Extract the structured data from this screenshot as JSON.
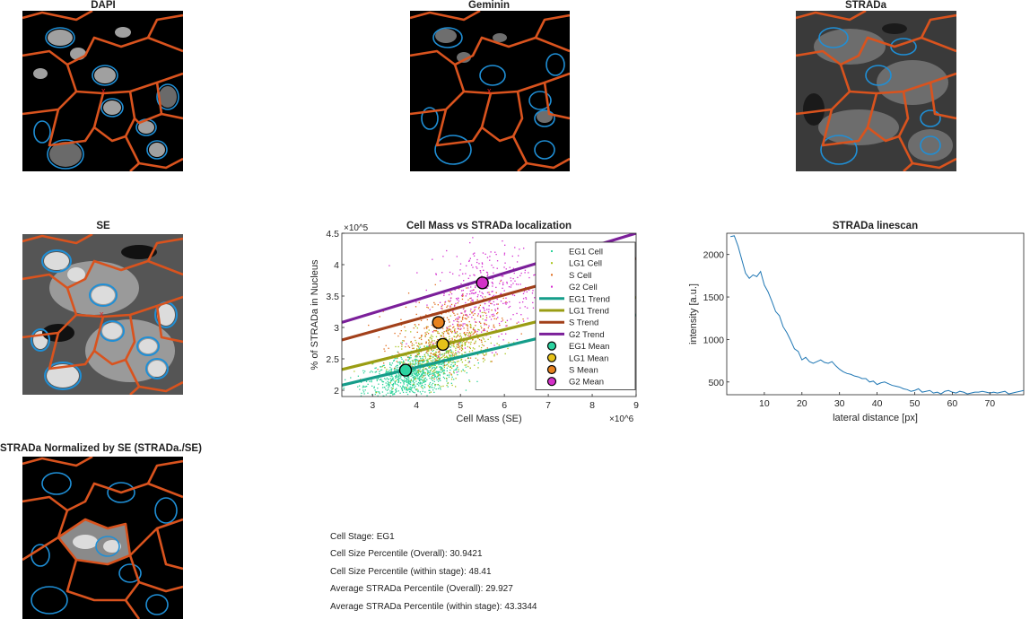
{
  "panels": {
    "dapi_title": "DAPI",
    "geminin_title": "Geminin",
    "strada_title": "STRADa",
    "se_title": "SE",
    "normalized_title": "STRADa Normalized by SE (STRADa./SE)"
  },
  "colors": {
    "segmentation_outline": "#d9531e",
    "nucleus_outline": "#1f8fd6",
    "marker": "#e02020"
  },
  "info": {
    "lines": [
      "Cell Stage: EG1",
      "Cell Size Percentile (Overall): 30.9421",
      "Cell Size Percentile (within stage): 48.41",
      "Average STRADa Percentile (Overall): 29.927",
      "Average STRADa Percentile (within stage): 43.3344"
    ]
  },
  "chart_data": [
    {
      "type": "scatter",
      "title": "Cell Mass vs STRADa localization",
      "xlabel": "Cell Mass (SE)",
      "ylabel": "% of STRADa in Nucleus",
      "x_exponent": "×10^6",
      "y_exponent": "×10^5",
      "xlim": [
        2.3,
        9.0
      ],
      "ylim": [
        1.9,
        4.5
      ],
      "xticks": [
        3,
        4,
        5,
        6,
        7,
        8,
        9
      ],
      "yticks": [
        2,
        2.5,
        3,
        3.5,
        4,
        4.5
      ],
      "ytick_labels": [
        "2",
        "2.5",
        "3",
        "3.5",
        "4",
        "4.5"
      ],
      "legend_position": "top-right",
      "series": [
        {
          "name": "EG1 Cell",
          "kind": "points",
          "color": "#2bd39a",
          "center": [
            3.9,
            2.25
          ],
          "spread": [
            0.9,
            0.17
          ],
          "count": 900
        },
        {
          "name": "LG1 Cell",
          "kind": "points",
          "color": "#a8c41a",
          "center": [
            4.6,
            2.6
          ],
          "spread": [
            0.9,
            0.22
          ],
          "count": 450
        },
        {
          "name": "S Cell",
          "kind": "points",
          "color": "#e06a1a",
          "center": [
            4.7,
            2.95
          ],
          "spread": [
            1.0,
            0.3
          ],
          "count": 400
        },
        {
          "name": "G2 Cell",
          "kind": "points",
          "color": "#d42cd0",
          "center": [
            5.6,
            3.55
          ],
          "spread": [
            1.1,
            0.38
          ],
          "count": 380
        },
        {
          "name": "EG1 Trend",
          "kind": "line",
          "color": "#159d8a",
          "x": [
            2.3,
            9.0
          ],
          "y": [
            2.08,
            3.2
          ]
        },
        {
          "name": "LG1 Trend",
          "kind": "line",
          "color": "#9a9d14",
          "x": [
            2.3,
            9.0
          ],
          "y": [
            2.33,
            3.48
          ]
        },
        {
          "name": "S Trend",
          "kind": "line",
          "color": "#a2401a",
          "x": [
            2.3,
            9.0
          ],
          "y": [
            2.8,
            4.1
          ]
        },
        {
          "name": "G2 Trend",
          "kind": "line",
          "color": "#7b1f9a",
          "x": [
            2.3,
            9.0
          ],
          "y": [
            3.08,
            4.5
          ]
        },
        {
          "name": "EG1 Mean",
          "kind": "mean",
          "color": "#2bd3a0",
          "x": [
            3.75
          ],
          "y": [
            2.32
          ]
        },
        {
          "name": "LG1 Mean",
          "kind": "mean",
          "color": "#e6c21a",
          "x": [
            4.6
          ],
          "y": [
            2.73
          ]
        },
        {
          "name": "S Mean",
          "kind": "mean",
          "color": "#e8821e",
          "x": [
            4.5
          ],
          "y": [
            3.08
          ]
        },
        {
          "name": "G2 Mean",
          "kind": "mean",
          "color": "#d430c8",
          "x": [
            5.5
          ],
          "y": [
            3.71
          ]
        }
      ]
    },
    {
      "type": "line",
      "title": "STRADa linescan",
      "xlabel": "lateral distance [px]",
      "ylabel": "intensity [a.u.]",
      "xlim": [
        0,
        79
      ],
      "ylim": [
        350,
        2250
      ],
      "xticks": [
        10,
        20,
        30,
        40,
        50,
        60,
        70
      ],
      "yticks": [
        500,
        1000,
        1500,
        2000
      ],
      "series": [
        {
          "name": "",
          "color": "#1f77b4",
          "x": [
            1,
            2,
            3,
            4,
            5,
            6,
            7,
            8,
            9,
            10,
            11,
            12,
            13,
            14,
            15,
            16,
            17,
            18,
            19,
            20,
            21,
            22,
            23,
            24,
            25,
            26,
            27,
            28,
            29,
            30,
            31,
            32,
            33,
            34,
            35,
            36,
            37,
            38,
            39,
            40,
            41,
            42,
            43,
            44,
            45,
            46,
            47,
            48,
            49,
            50,
            51,
            52,
            53,
            54,
            55,
            56,
            57,
            58,
            59,
            60,
            61,
            62,
            63,
            64,
            65,
            66,
            67,
            68,
            69,
            70,
            71,
            72,
            73,
            74,
            75,
            76,
            77,
            78,
            79
          ],
          "y": [
            2210,
            2220,
            2100,
            1940,
            1780,
            1720,
            1760,
            1740,
            1800,
            1640,
            1560,
            1450,
            1330,
            1280,
            1150,
            1080,
            990,
            890,
            860,
            760,
            790,
            740,
            720,
            740,
            760,
            730,
            720,
            740,
            690,
            650,
            620,
            600,
            590,
            570,
            560,
            540,
            540,
            500,
            510,
            470,
            490,
            500,
            480,
            460,
            450,
            440,
            420,
            410,
            390,
            400,
            420,
            380,
            390,
            400,
            370,
            380,
            360,
            390,
            400,
            380,
            370,
            390,
            380,
            360,
            370,
            380,
            380,
            390,
            380,
            370,
            380,
            370,
            380,
            390,
            360,
            370,
            380,
            390,
            400
          ]
        }
      ]
    }
  ]
}
